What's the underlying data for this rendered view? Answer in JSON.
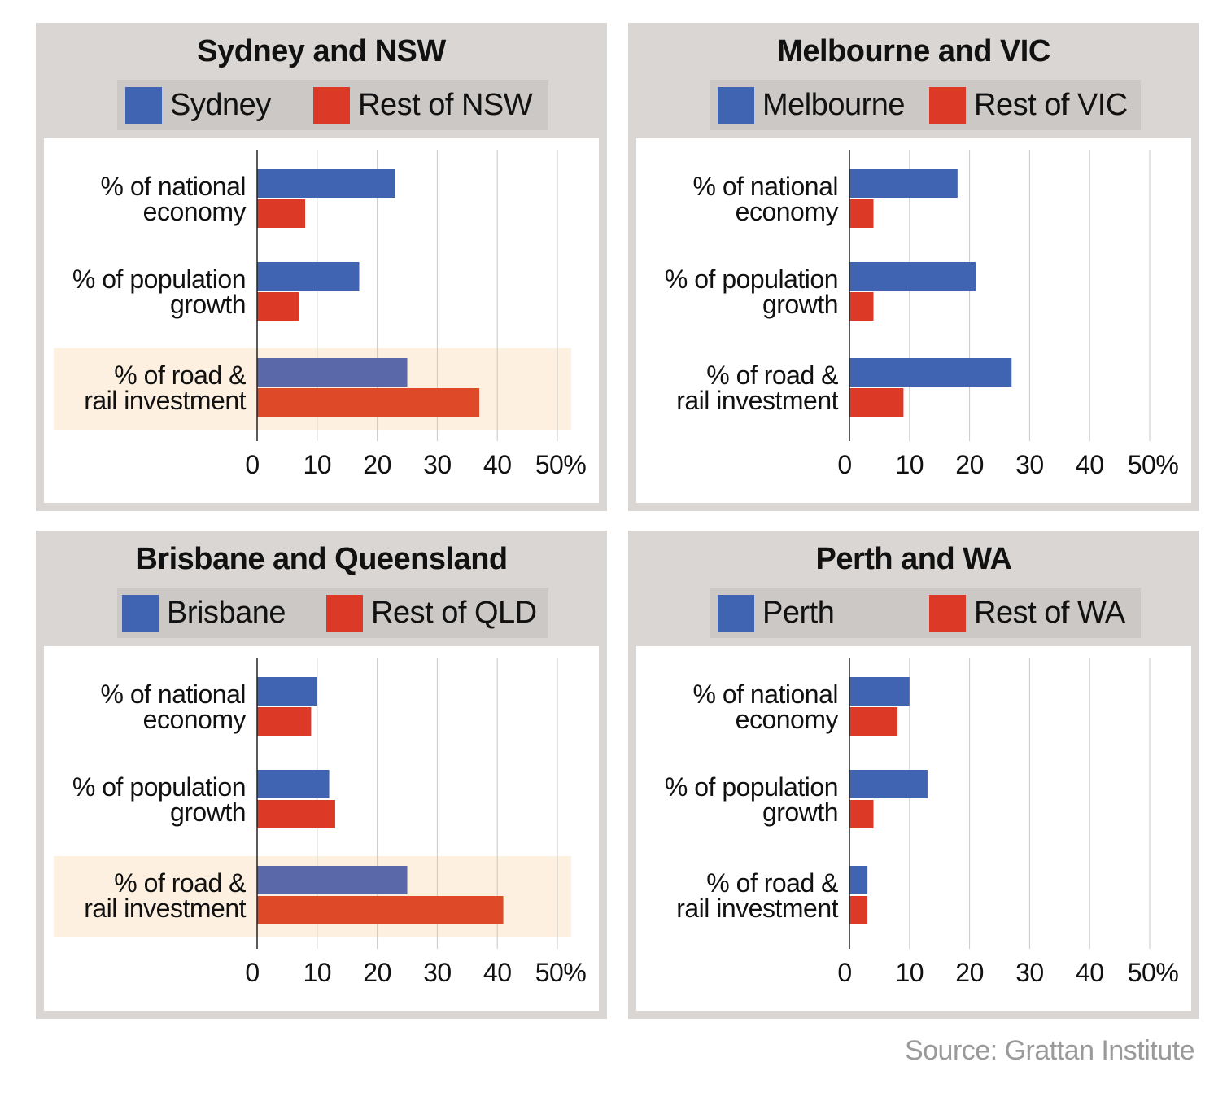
{
  "colors": {
    "primary": "#4064b2",
    "rest": "#dc3a27",
    "highlight_bg": "#fdf0e0",
    "primary_highlight": "#5a67a8",
    "rest_highlight": "#de4a28"
  },
  "source": "Source: Grattan Institute",
  "chart_data": [
    {
      "type": "bar",
      "orientation": "horizontal",
      "title": "Sydney and NSW",
      "legend": [
        "Sydney",
        "Rest of NSW"
      ],
      "categories": [
        [
          "% of national",
          "economy"
        ],
        [
          "% of population",
          "growth"
        ],
        [
          "% of road &",
          "rail investment"
        ]
      ],
      "series": [
        {
          "name": "Sydney",
          "values": [
            23,
            17,
            25
          ]
        },
        {
          "name": "Rest of NSW",
          "values": [
            8,
            7,
            37
          ]
        }
      ],
      "xlim": [
        0,
        50
      ],
      "ticks": [
        "0",
        "10",
        "20",
        "30",
        "40",
        "50%"
      ],
      "highlighted_category": 2,
      "grid": true
    },
    {
      "type": "bar",
      "orientation": "horizontal",
      "title": "Melbourne and VIC",
      "legend": [
        "Melbourne",
        "Rest of VIC"
      ],
      "categories": [
        [
          "% of national",
          "economy"
        ],
        [
          "% of population",
          "growth"
        ],
        [
          "% of road &",
          "rail investment"
        ]
      ],
      "series": [
        {
          "name": "Melbourne",
          "values": [
            18,
            21,
            27
          ]
        },
        {
          "name": "Rest of VIC",
          "values": [
            4,
            4,
            9
          ]
        }
      ],
      "xlim": [
        0,
        50
      ],
      "ticks": [
        "0",
        "10",
        "20",
        "30",
        "40",
        "50%"
      ],
      "highlighted_category": null,
      "grid": true
    },
    {
      "type": "bar",
      "orientation": "horizontal",
      "title": "Brisbane and Queensland",
      "legend": [
        "Brisbane",
        "Rest of QLD"
      ],
      "categories": [
        [
          "% of national",
          "economy"
        ],
        [
          "% of population",
          "growth"
        ],
        [
          "% of road &",
          "rail investment"
        ]
      ],
      "series": [
        {
          "name": "Brisbane",
          "values": [
            10,
            12,
            25
          ]
        },
        {
          "name": "Rest of QLD",
          "values": [
            9,
            13,
            41
          ]
        }
      ],
      "xlim": [
        0,
        50
      ],
      "ticks": [
        "0",
        "10",
        "20",
        "30",
        "40",
        "50%"
      ],
      "highlighted_category": 2,
      "grid": true
    },
    {
      "type": "bar",
      "orientation": "horizontal",
      "title": "Perth and WA",
      "legend": [
        "Perth",
        "Rest of WA"
      ],
      "categories": [
        [
          "% of national",
          "economy"
        ],
        [
          "% of population",
          "growth"
        ],
        [
          "% of road &",
          "rail investment"
        ]
      ],
      "series": [
        {
          "name": "Perth",
          "values": [
            10,
            13,
            3
          ]
        },
        {
          "name": "Rest of WA",
          "values": [
            8,
            4,
            3
          ]
        }
      ],
      "xlim": [
        0,
        50
      ],
      "ticks": [
        "0",
        "10",
        "20",
        "30",
        "40",
        "50%"
      ],
      "highlighted_category": null,
      "grid": true
    }
  ]
}
